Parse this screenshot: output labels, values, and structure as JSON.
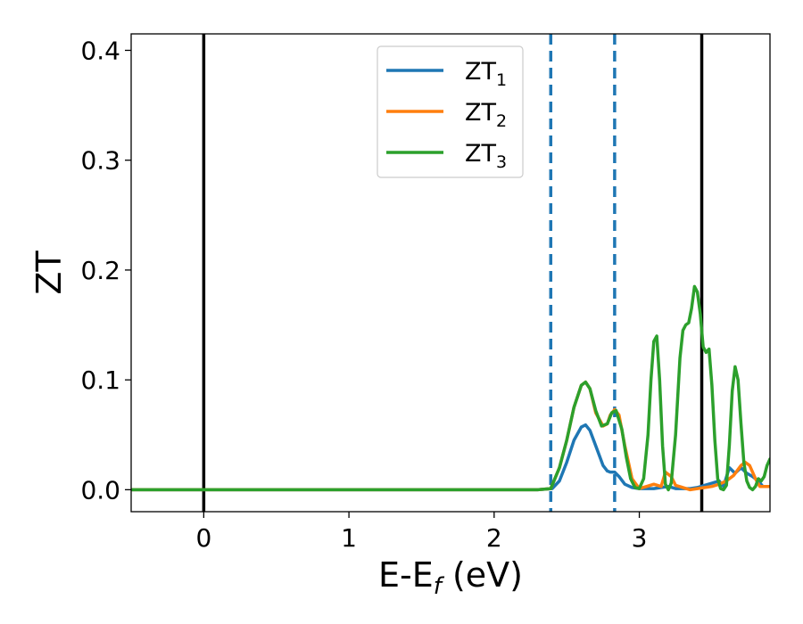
{
  "chart_data": {
    "type": "line",
    "xlabel": "E-E$_f$ (eV)",
    "xlabel_main": "E-E",
    "xlabel_sub": "f",
    "xlabel_tail": " (eV)",
    "ylabel": "ZT",
    "xlim": [
      -0.5,
      3.9
    ],
    "ylim": [
      -0.02,
      0.415
    ],
    "x_ticks": [
      0,
      1,
      2,
      3
    ],
    "x_tick_labels": [
      "0",
      "1",
      "2",
      "3"
    ],
    "y_ticks": [
      0.0,
      0.1,
      0.2,
      0.3,
      0.4
    ],
    "y_tick_labels": [
      "0.0",
      "0.1",
      "0.2",
      "0.3",
      "0.4"
    ],
    "grid": false,
    "legend_position": "upper center",
    "vertical_lines": [
      {
        "x": 0.0,
        "style": "solid",
        "color": "#000000"
      },
      {
        "x": 3.43,
        "style": "solid",
        "color": "#000000"
      },
      {
        "x": 2.39,
        "style": "dashed",
        "color": "#1f77b4"
      },
      {
        "x": 2.83,
        "style": "dashed",
        "color": "#1f77b4"
      }
    ],
    "series": [
      {
        "name": "ZT1",
        "label_main": "ZT",
        "label_sub": "1",
        "color": "#1f77b4",
        "x": [
          -0.5,
          2.3,
          2.4,
          2.45,
          2.5,
          2.55,
          2.6,
          2.63,
          2.66,
          2.7,
          2.75,
          2.78,
          2.8,
          2.83,
          2.86,
          2.9,
          2.95,
          3.0,
          3.05,
          3.1,
          3.15,
          3.2,
          3.25,
          3.3,
          3.35,
          3.4,
          3.45,
          3.5,
          3.55,
          3.58,
          3.62,
          3.66,
          3.7,
          3.74,
          3.78,
          3.82,
          3.85,
          3.88,
          3.9
        ],
        "y": [
          0.0,
          0.0,
          0.001,
          0.008,
          0.025,
          0.045,
          0.057,
          0.059,
          0.054,
          0.04,
          0.022,
          0.017,
          0.016,
          0.016,
          0.012,
          0.005,
          0.002,
          0.001,
          0.001,
          0.001,
          0.002,
          0.003,
          0.001,
          0.001,
          0.001,
          0.002,
          0.004,
          0.006,
          0.008,
          0.003,
          0.02,
          0.015,
          0.02,
          0.015,
          0.012,
          0.008,
          0.003,
          0.003,
          0.003
        ]
      },
      {
        "name": "ZT2",
        "label_main": "ZT",
        "label_sub": "2",
        "color": "#ff7f0e",
        "x": [
          -0.5,
          2.3,
          2.39,
          2.45,
          2.5,
          2.55,
          2.6,
          2.63,
          2.66,
          2.7,
          2.75,
          2.78,
          2.8,
          2.83,
          2.86,
          2.9,
          2.95,
          3.0,
          3.05,
          3.1,
          3.15,
          3.18,
          3.22,
          3.25,
          3.3,
          3.35,
          3.4,
          3.45,
          3.5,
          3.55,
          3.6,
          3.65,
          3.7,
          3.73,
          3.76,
          3.8,
          3.83,
          3.86,
          3.9
        ],
        "y": [
          0.0,
          0.0,
          0.001,
          0.02,
          0.045,
          0.075,
          0.095,
          0.098,
          0.092,
          0.07,
          0.058,
          0.06,
          0.068,
          0.073,
          0.068,
          0.04,
          0.01,
          0.001,
          0.003,
          0.005,
          0.003,
          0.016,
          0.012,
          0.004,
          0.002,
          0.0,
          0.001,
          0.002,
          0.003,
          0.005,
          0.008,
          0.013,
          0.022,
          0.025,
          0.022,
          0.01,
          0.003,
          0.003,
          0.003
        ]
      },
      {
        "name": "ZT3",
        "label_main": "ZT",
        "label_sub": "3",
        "color": "#2ca02c",
        "x": [
          -0.5,
          2.3,
          2.39,
          2.45,
          2.5,
          2.55,
          2.6,
          2.63,
          2.66,
          2.7,
          2.74,
          2.78,
          2.81,
          2.84,
          2.88,
          2.91,
          2.94,
          2.97,
          3.0,
          3.03,
          3.06,
          3.08,
          3.1,
          3.12,
          3.14,
          3.16,
          3.18,
          3.2,
          3.22,
          3.25,
          3.28,
          3.3,
          3.32,
          3.34,
          3.36,
          3.38,
          3.4,
          3.42,
          3.44,
          3.46,
          3.48,
          3.5,
          3.52,
          3.54,
          3.56,
          3.58,
          3.6,
          3.62,
          3.64,
          3.66,
          3.68,
          3.7,
          3.72,
          3.74,
          3.76,
          3.78,
          3.8,
          3.82,
          3.84,
          3.86,
          3.88,
          3.9
        ],
        "y": [
          0.0,
          0.0,
          0.001,
          0.02,
          0.045,
          0.075,
          0.095,
          0.098,
          0.092,
          0.072,
          0.058,
          0.06,
          0.07,
          0.072,
          0.055,
          0.03,
          0.01,
          0.002,
          0.001,
          0.01,
          0.05,
          0.1,
          0.135,
          0.14,
          0.1,
          0.04,
          0.005,
          0.0,
          0.006,
          0.05,
          0.12,
          0.145,
          0.15,
          0.152,
          0.165,
          0.185,
          0.18,
          0.16,
          0.13,
          0.125,
          0.128,
          0.095,
          0.045,
          0.01,
          0.001,
          0.0,
          0.004,
          0.04,
          0.09,
          0.112,
          0.1,
          0.06,
          0.025,
          0.008,
          0.002,
          0.0,
          0.003,
          0.01,
          0.008,
          0.012,
          0.022,
          0.028
        ]
      }
    ]
  }
}
